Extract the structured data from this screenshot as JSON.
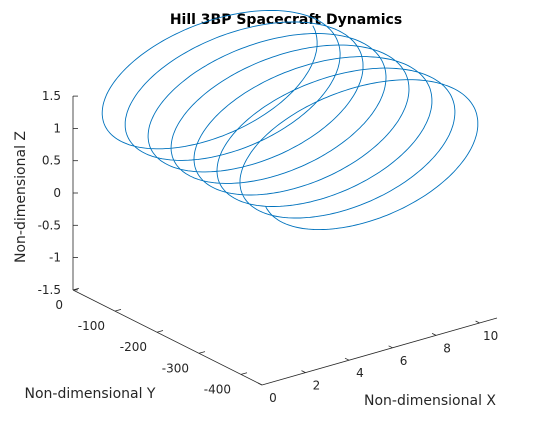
{
  "chart_data": {
    "type": "line",
    "projection": "3d",
    "title": "Hill 3BP Spacecraft Dynamics",
    "xlabel": "Non-dimensional X",
    "ylabel": "Non-dimensional Y",
    "zlabel": "Non-dimensional Z",
    "xlim": [
      0,
      10.8
    ],
    "ylim": [
      -450,
      0
    ],
    "zlim": [
      -1.5,
      1.5
    ],
    "x_ticks": [
      "0",
      "2",
      "4",
      "6",
      "8",
      "10"
    ],
    "y_ticks": [
      "0",
      "-100",
      "-200",
      "-300",
      "-400"
    ],
    "z_ticks": [
      "1.5",
      "1",
      "0.5",
      "0",
      "-0.5",
      "-1",
      "-1.5"
    ],
    "grid": false,
    "legend": "none",
    "line_color": "#0072BD",
    "trajectory": {
      "revolutions": 7.5,
      "phase_start_deg": 194,
      "x_center": 5.3,
      "x_amplitude": 5.2,
      "y_start": -5,
      "y_end": -415,
      "z_amplitude": 1.05
    }
  }
}
